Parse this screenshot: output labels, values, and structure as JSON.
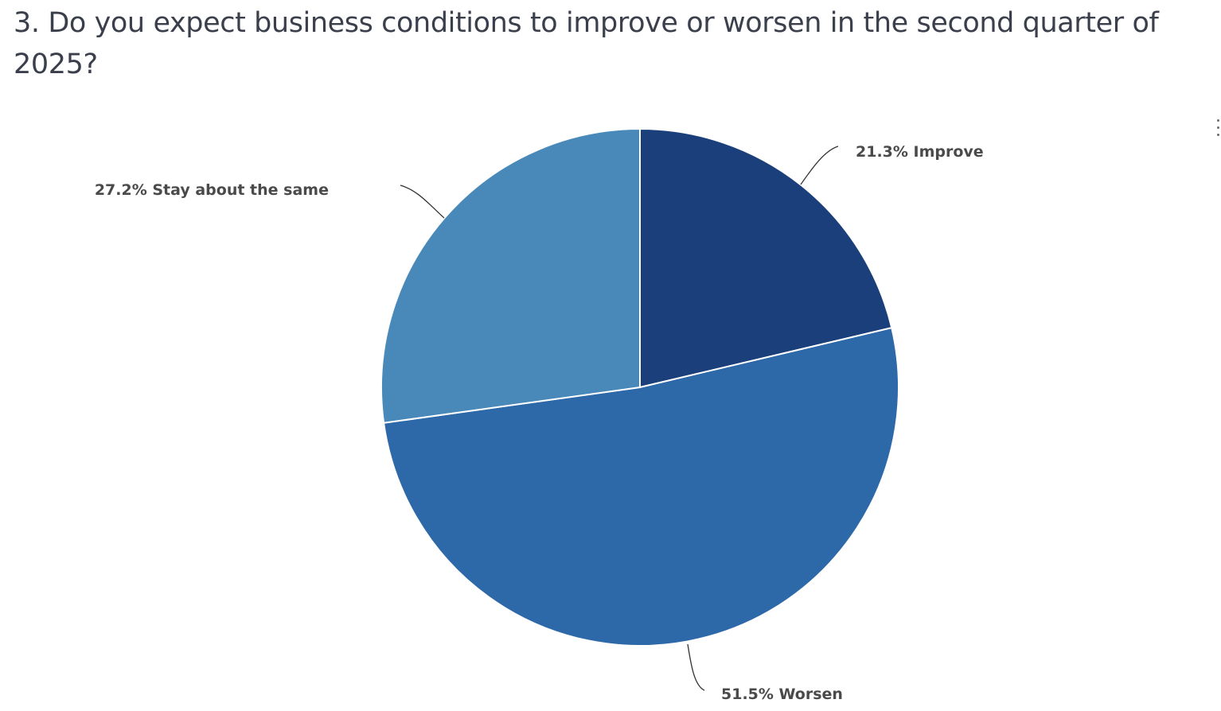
{
  "question": {
    "title": "3. Do you expect business conditions to improve or worsen in the second quarter of 2025?"
  },
  "chart_data": {
    "type": "pie",
    "title": "",
    "slices": [
      {
        "label": "Improve",
        "value": 21.3,
        "display": "21.3% Improve",
        "color": "#1a3f7a"
      },
      {
        "label": "Worsen",
        "value": 51.5,
        "display": "51.5% Worsen",
        "color": "#2d68a8"
      },
      {
        "label": "Stay about the same",
        "value": 27.2,
        "display": "27.2% Stay about the same",
        "color": "#4889ba"
      }
    ],
    "start_angle_deg": 0,
    "direction": "clockwise",
    "slice_border_color": "#ffffff",
    "leader_line_color": "#333333",
    "legend": "none"
  },
  "chart_menu": {
    "icon": "vertical-ellipsis-icon"
  }
}
